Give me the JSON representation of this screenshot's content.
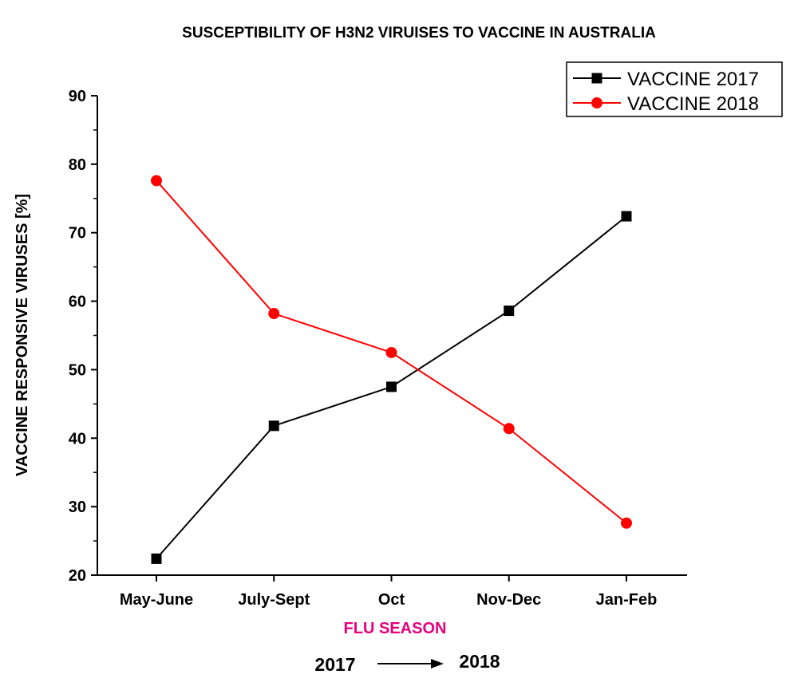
{
  "chart_data": {
    "type": "line",
    "title": "SUSCEPTIBILITY OF H3N2 VIRUISES TO VACCINE IN AUSTRALIA",
    "xlabel": "FLU SEASON",
    "ylabel": "VACCINE RESPONSIVE VIRUSES [%]",
    "categories": [
      "May-June",
      "July-Sept",
      "Oct",
      "Nov-Dec",
      "Jan-Feb"
    ],
    "ylim": [
      20,
      90
    ],
    "yticks": [
      20,
      30,
      40,
      50,
      60,
      70,
      80,
      90
    ],
    "grid": false,
    "legend_position": "top-right",
    "series": [
      {
        "name": "VACCINE 2017",
        "color": "#000000",
        "marker": "square",
        "values": [
          22.4,
          41.8,
          47.5,
          58.6,
          72.4
        ]
      },
      {
        "name": "VACCINE 2018",
        "color": "#ff0000",
        "marker": "circle",
        "values": [
          77.6,
          58.2,
          52.5,
          41.4,
          27.6
        ]
      }
    ],
    "annotation": {
      "from": "2017",
      "to": "2018"
    },
    "xlabel_color": "#e6007e"
  }
}
